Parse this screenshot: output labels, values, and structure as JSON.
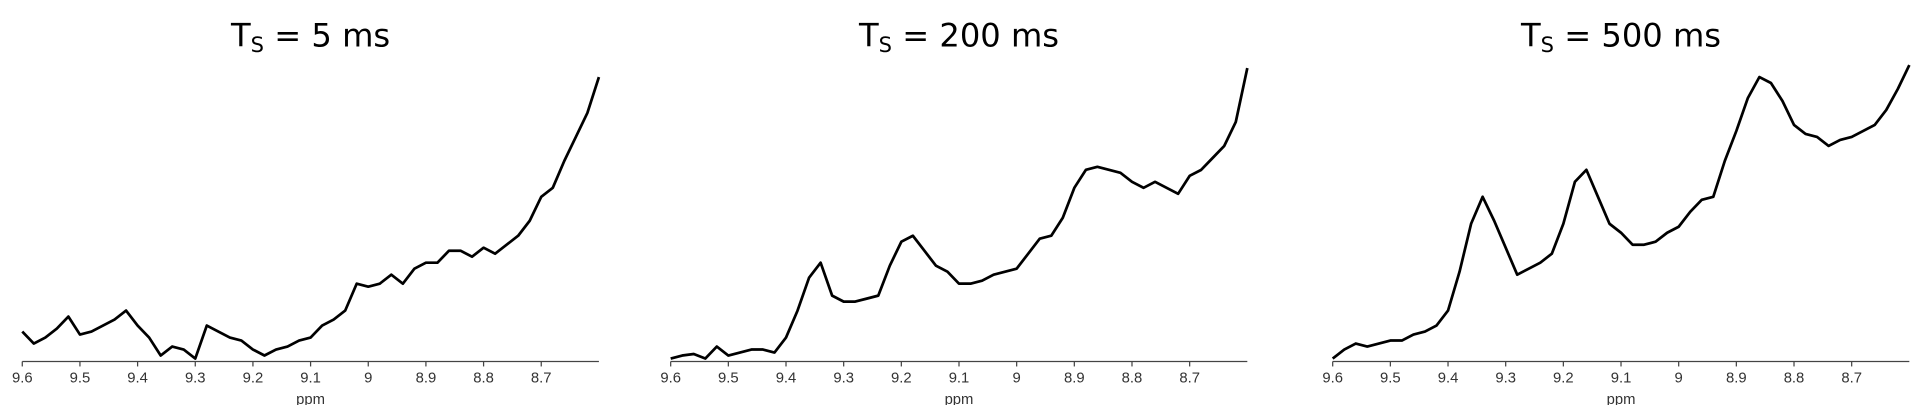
{
  "chart_data": [
    {
      "type": "line",
      "title": {
        "main": "T",
        "sub": "S",
        "rest": " = 5 ms"
      },
      "xlabel": "ppm",
      "color": "#000000",
      "x": [
        9.6,
        9.58,
        9.56,
        9.54,
        9.52,
        9.5,
        9.48,
        9.46,
        9.44,
        9.42,
        9.4,
        9.38,
        9.36,
        9.34,
        9.32,
        9.3,
        9.28,
        9.26,
        9.24,
        9.22,
        9.2,
        9.18,
        9.16,
        9.14,
        9.12,
        9.1,
        9.08,
        9.06,
        9.04,
        9.02,
        9,
        8.98,
        8.96,
        8.94,
        8.92,
        8.9,
        8.88,
        8.86,
        8.84,
        8.82,
        8.8,
        8.78,
        8.76,
        8.74,
        8.72,
        8.7,
        8.68,
        8.66,
        8.64,
        8.62,
        8.6
      ],
      "values": [
        10,
        6,
        8,
        11,
        15,
        9,
        10,
        12,
        14,
        17,
        12,
        8,
        2,
        5,
        4,
        1,
        12,
        10,
        8,
        7,
        4,
        2,
        4,
        5,
        7,
        8,
        12,
        14,
        17,
        26,
        25,
        26,
        29,
        26,
        31,
        33,
        33,
        37,
        37,
        35,
        38,
        36,
        39,
        42,
        47,
        55,
        58,
        67,
        75,
        83,
        95
      ],
      "xlim": [
        9.6,
        8.6
      ],
      "ylim": [
        0,
        100
      ],
      "xticks": [
        9.6,
        9.5,
        9.4,
        9.3,
        9.2,
        9.1,
        9,
        8.9,
        8.8,
        8.7
      ]
    },
    {
      "type": "line",
      "title": {
        "main": "T",
        "sub": "S",
        "rest": " = 200 ms"
      },
      "xlabel": "ppm",
      "color": "#000000",
      "x": [
        9.6,
        9.58,
        9.56,
        9.54,
        9.52,
        9.5,
        9.48,
        9.46,
        9.44,
        9.42,
        9.4,
        9.38,
        9.36,
        9.34,
        9.32,
        9.3,
        9.28,
        9.26,
        9.24,
        9.22,
        9.2,
        9.18,
        9.16,
        9.14,
        9.12,
        9.1,
        9.08,
        9.06,
        9.04,
        9.02,
        9,
        8.98,
        8.96,
        8.94,
        8.92,
        8.9,
        8.88,
        8.86,
        8.84,
        8.82,
        8.8,
        8.78,
        8.76,
        8.74,
        8.72,
        8.7,
        8.68,
        8.66,
        8.64,
        8.62,
        8.6
      ],
      "values": [
        1,
        2,
        2.5,
        1,
        5,
        2,
        3,
        4,
        4,
        3,
        8,
        17,
        28,
        33,
        22,
        20,
        20,
        21,
        22,
        32,
        40,
        42,
        37,
        32,
        30,
        26,
        26,
        27,
        29,
        30,
        31,
        36,
        41,
        42,
        48,
        58,
        64,
        65,
        64,
        63,
        60,
        58,
        60,
        58,
        56,
        62,
        64,
        68,
        72,
        80,
        98
      ],
      "xlim": [
        9.6,
        8.6
      ],
      "ylim": [
        0,
        100
      ],
      "xticks": [
        9.6,
        9.5,
        9.4,
        9.3,
        9.2,
        9.1,
        9,
        8.9,
        8.8,
        8.7
      ]
    },
    {
      "type": "line",
      "title": {
        "main": "T",
        "sub": "S",
        "rest": " = 500 ms"
      },
      "xlabel": "ppm",
      "color": "#000000",
      "x": [
        9.6,
        9.58,
        9.56,
        9.54,
        9.52,
        9.5,
        9.48,
        9.46,
        9.44,
        9.42,
        9.4,
        9.38,
        9.36,
        9.34,
        9.32,
        9.3,
        9.28,
        9.26,
        9.24,
        9.22,
        9.2,
        9.18,
        9.16,
        9.14,
        9.12,
        9.1,
        9.08,
        9.06,
        9.04,
        9.02,
        9,
        8.98,
        8.96,
        8.94,
        8.92,
        8.9,
        8.88,
        8.86,
        8.84,
        8.82,
        8.8,
        8.78,
        8.76,
        8.74,
        8.72,
        8.7,
        8.68,
        8.66,
        8.64,
        8.62,
        8.6
      ],
      "values": [
        1,
        4,
        6,
        5,
        6,
        7,
        7,
        9,
        10,
        12,
        17,
        30,
        46,
        55,
        47,
        38,
        29,
        31,
        33,
        36,
        46,
        60,
        64,
        55,
        46,
        43,
        39,
        39,
        40,
        43,
        45,
        50,
        54,
        55,
        67,
        77,
        88,
        95,
        93,
        87,
        79,
        76,
        75,
        72,
        74,
        75,
        77,
        79,
        84,
        91,
        99
      ],
      "xlim": [
        9.6,
        8.6
      ],
      "ylim": [
        0,
        100
      ],
      "xticks": [
        9.6,
        9.5,
        9.4,
        9.3,
        9.2,
        9.1,
        9,
        8.9,
        8.8,
        8.7
      ]
    }
  ]
}
